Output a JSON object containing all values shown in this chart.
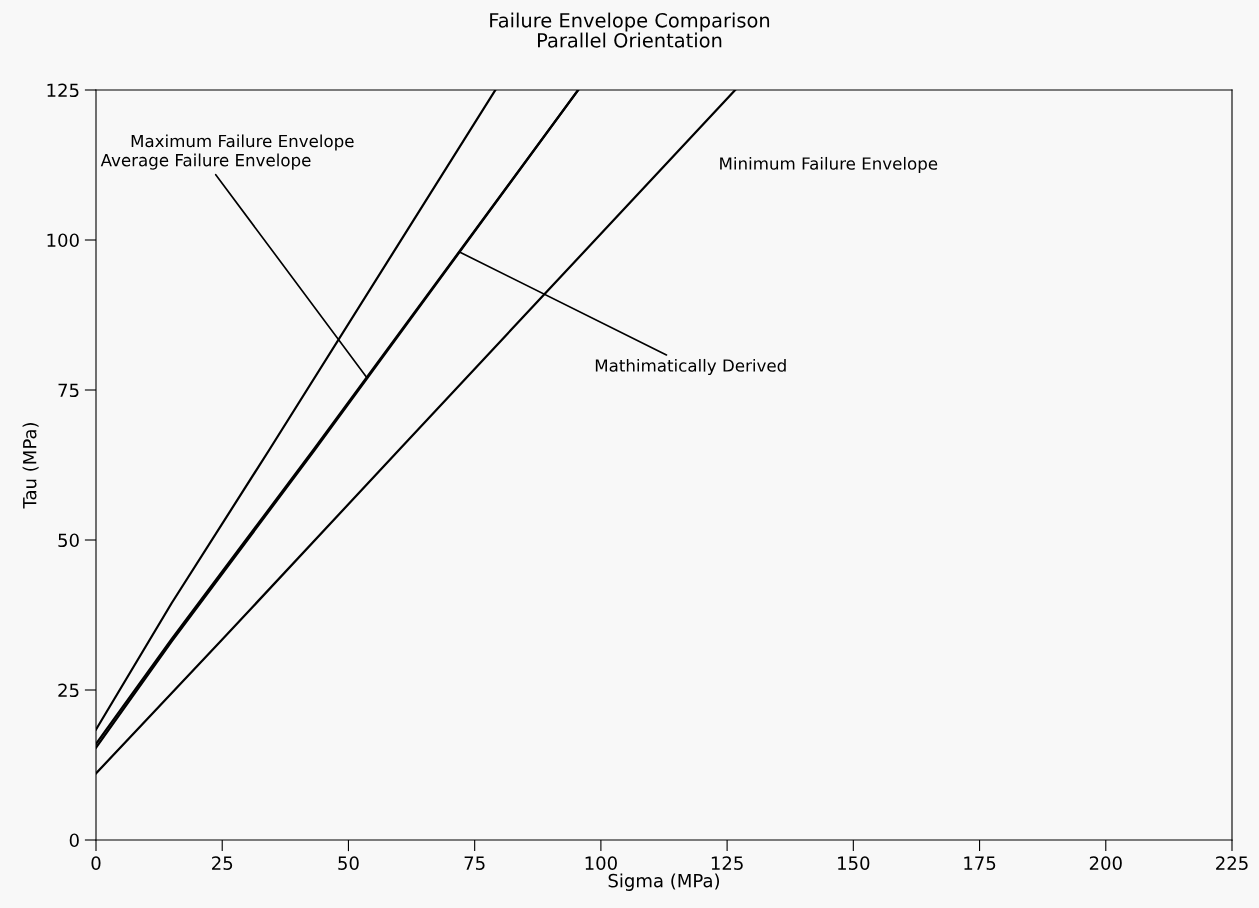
{
  "chart_data": {
    "type": "line",
    "title": "Failure Envelope Comparison",
    "subtitle": "Parallel Orientation",
    "xlabel": "Sigma (MPa)",
    "ylabel": "Tau (MPa)",
    "xlim": [
      0,
      225
    ],
    "xticks": [
      0,
      25,
      50,
      75,
      100,
      125,
      150,
      175,
      200,
      225
    ],
    "ylim": [
      0,
      125
    ],
    "yticks": [
      0,
      25,
      50,
      75,
      100,
      125
    ],
    "grid": false,
    "legend": false,
    "marker": "none",
    "line_style": "solid",
    "series": [
      {
        "color": "#000000",
        "x": [
          0,
          15,
          34.3,
          79.1
        ],
        "values": [
          18.4,
          39.5,
          65,
          125
        ]
      },
      {
        "color": "#000000",
        "x": [
          0,
          15,
          43.3,
          95.5
        ],
        "values": [
          15.4,
          33.1,
          65,
          125
        ]
      },
      {
        "color": "#000000",
        "x": [
          0,
          15,
          43.3,
          95.5
        ],
        "values": [
          16.0,
          33.5,
          65.3,
          125
        ]
      },
      {
        "color": "#000000",
        "x": [
          0,
          25,
          60,
          126.6
        ],
        "values": [
          11.1,
          33.4,
          65,
          125
        ]
      }
    ],
    "annotations": [
      "Maximum Failure Envelope",
      {
        "text": "Average Failure Envelope",
        "x": 53.7,
        "y": 77
      },
      "Minimum Failure Envelope",
      {
        "text": "Mathimatically Derived",
        "x": 72.0,
        "y": 98
      }
    ]
  }
}
